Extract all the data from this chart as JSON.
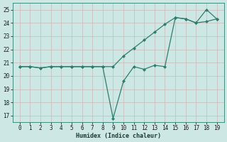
{
  "xlabel": "Humidex (Indice chaleur)",
  "ylabel": "",
  "x": [
    0,
    1,
    2,
    3,
    4,
    5,
    6,
    7,
    8,
    9,
    10,
    11,
    12,
    13,
    14,
    15,
    16,
    17,
    18,
    19
  ],
  "series1": [
    20.7,
    20.7,
    20.6,
    20.7,
    20.7,
    20.7,
    20.7,
    20.7,
    20.7,
    20.7,
    21.5,
    22.1,
    22.7,
    23.3,
    23.9,
    24.4,
    24.3,
    24.0,
    24.1,
    24.3
  ],
  "series2": [
    20.7,
    20.7,
    20.6,
    20.7,
    20.7,
    20.7,
    20.7,
    20.7,
    20.7,
    16.8,
    19.6,
    20.7,
    20.5,
    20.8,
    20.7,
    24.4,
    24.3,
    24.0,
    25.0,
    24.3
  ],
  "line_color": "#2e7d6e",
  "bg_color": "#cde8e4",
  "grid_color": "#b8d8d4",
  "ylim": [
    16.5,
    25.5
  ],
  "yticks": [
    17,
    18,
    19,
    20,
    21,
    22,
    23,
    24,
    25
  ],
  "xticks": [
    0,
    1,
    2,
    3,
    4,
    5,
    6,
    7,
    8,
    9,
    10,
    11,
    12,
    13,
    14,
    15,
    16,
    17,
    18,
    19
  ],
  "marker": "D",
  "markersize": 2.0,
  "linewidth": 0.9,
  "tick_fontsize": 5.5,
  "xlabel_fontsize": 6.0
}
